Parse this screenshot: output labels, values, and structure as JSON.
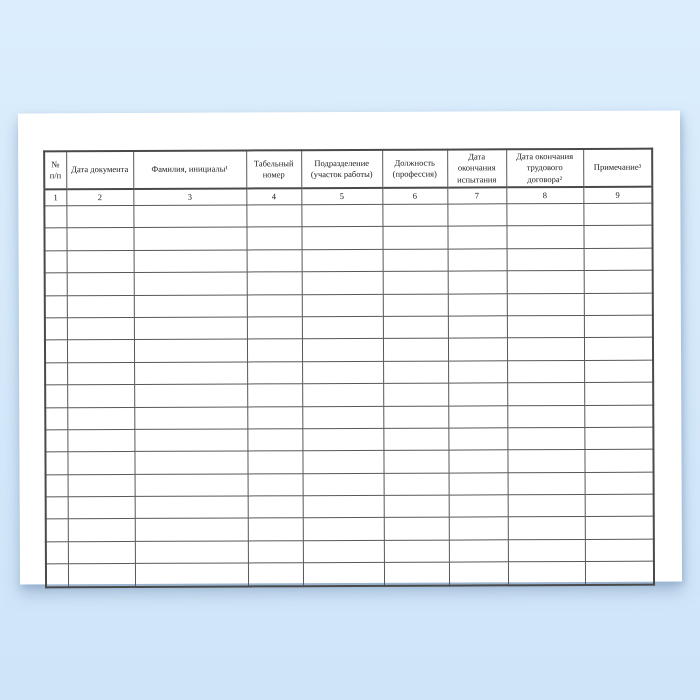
{
  "background": {
    "top_color": "#dceefd",
    "bottom_color": "#cfe4f8"
  },
  "paper": {
    "color": "#ffffff"
  },
  "table": {
    "line_color": "#4a4a4a",
    "headers": [
      {
        "label": "№ п/п",
        "number": "1"
      },
      {
        "label": "Дата документа",
        "number": "2"
      },
      {
        "label": "Фамилия, инициалы¹",
        "number": "3"
      },
      {
        "label": "Табельный номер",
        "number": "4"
      },
      {
        "label": "Подразделение (участок работы)",
        "number": "5"
      },
      {
        "label": "Должность (профессия)",
        "number": "6"
      },
      {
        "label": "Дата окончания испытания",
        "number": "7"
      },
      {
        "label": "Дата окончания трудового договора²",
        "number": "8"
      },
      {
        "label": "Примечание³",
        "number": "9"
      }
    ],
    "empty_row_count": 17
  }
}
